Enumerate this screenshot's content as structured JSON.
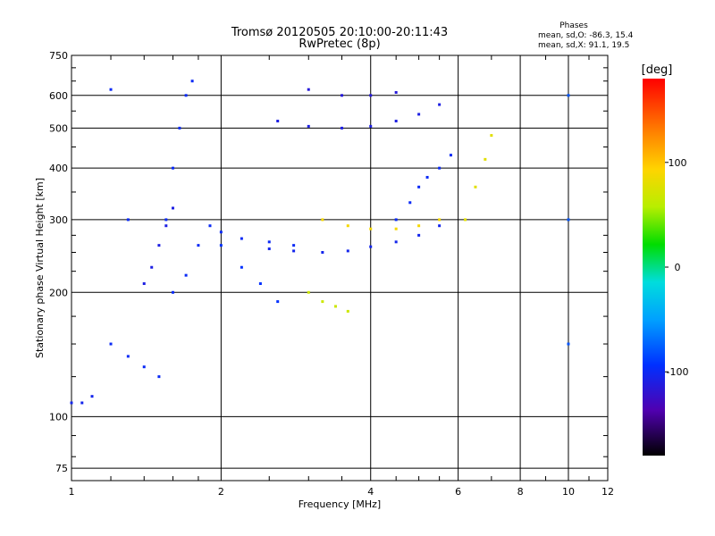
{
  "chart_data": {
    "type": "scatter",
    "title": "Tromsø 20120505 20:10:00-20:11:43",
    "subtitle": "RwPretec (8p)",
    "xlabel": "Frequency [MHz]",
    "ylabel": "Stationary phase Virtual Height [km]",
    "x_scale": "log",
    "y_scale": "log",
    "xlim": [
      1,
      12
    ],
    "ylim": [
      70,
      750
    ],
    "grid": true,
    "x_ticks": [
      "1",
      "2",
      "4",
      "6",
      "8",
      "10",
      "12"
    ],
    "x_tick_values": [
      1,
      2,
      4,
      6,
      8,
      10,
      12
    ],
    "y_ticks": [
      "75",
      "100",
      "200",
      "300",
      "400",
      "500",
      "600",
      "750"
    ],
    "y_tick_values": [
      75,
      100,
      200,
      300,
      400,
      500,
      600,
      750
    ],
    "legend": {
      "title": "Phases",
      "lines": [
        "mean, sd,O: -86.3, 15.4",
        "mean, sd,X:  91.1, 19.5"
      ],
      "placement": "top-right"
    },
    "colorbar": {
      "label": "[deg]",
      "range": [
        -180,
        180
      ],
      "ticks": [
        "100",
        "0",
        "-100"
      ],
      "tick_values": [
        100,
        0,
        -100
      ],
      "placement": "right"
    },
    "traces": [
      {
        "x": [
          1.0,
          1.05,
          1.1
        ],
        "y": [
          108,
          108,
          112
        ],
        "phase": -105
      },
      {
        "x": [
          1.2,
          1.3,
          1.4,
          1.5,
          1.6,
          1.7,
          1.8
        ],
        "y": [
          150,
          140,
          132,
          125,
          200,
          220,
          260
        ],
        "phase": -100
      },
      {
        "x": [
          1.55,
          1.6,
          1.65,
          1.7,
          1.75
        ],
        "y": [
          300,
          400,
          500,
          600,
          650
        ],
        "phase": -100
      },
      {
        "x": [
          1.4,
          1.45,
          1.5,
          1.55,
          1.6
        ],
        "y": [
          210,
          230,
          260,
          290,
          320
        ],
        "phase": -110
      },
      {
        "x": [
          1.9,
          2.0,
          2.2,
          2.5,
          2.8
        ],
        "y": [
          290,
          280,
          270,
          265,
          260
        ],
        "phase": -100
      },
      {
        "x": [
          2.0,
          2.2,
          2.4,
          2.6
        ],
        "y": [
          260,
          230,
          210,
          190
        ],
        "phase": -95
      },
      {
        "x": [
          2.5,
          2.8,
          3.2,
          3.6,
          4.0,
          4.5,
          5.0,
          5.5
        ],
        "y": [
          255,
          252,
          250,
          252,
          258,
          265,
          275,
          290
        ],
        "phase": -105
      },
      {
        "x": [
          4.5,
          4.8,
          5.0,
          5.2,
          5.5,
          5.8
        ],
        "y": [
          300,
          330,
          360,
          380,
          400,
          430
        ],
        "phase": -100
      },
      {
        "x": [
          3.2,
          3.6,
          4.0,
          4.5,
          5.0,
          5.5
        ],
        "y": [
          300,
          290,
          285,
          285,
          290,
          300
        ],
        "phase": 90
      },
      {
        "x": [
          2.6,
          3.0,
          3.5,
          4.0,
          4.5,
          5.0,
          5.5
        ],
        "y": [
          520,
          505,
          500,
          505,
          520,
          540,
          570
        ],
        "phase": -110
      },
      {
        "x": [
          3.0,
          3.5,
          4.0,
          4.5
        ],
        "y": [
          620,
          600,
          600,
          610
        ],
        "phase": -115
      },
      {
        "x": [
          6.2,
          6.5,
          6.8,
          7.0
        ],
        "y": [
          300,
          360,
          420,
          480
        ],
        "phase": 80
      },
      {
        "x": [
          3.0,
          3.2,
          3.4,
          3.6
        ],
        "y": [
          200,
          190,
          185,
          180
        ],
        "phase": 70
      },
      {
        "x": [
          1.2,
          1.3
        ],
        "y": [
          620,
          300
        ],
        "phase": -100
      },
      {
        "x": [
          10.0,
          10.0,
          10.0
        ],
        "y": [
          600,
          300,
          150
        ],
        "phase": -80
      }
    ]
  }
}
